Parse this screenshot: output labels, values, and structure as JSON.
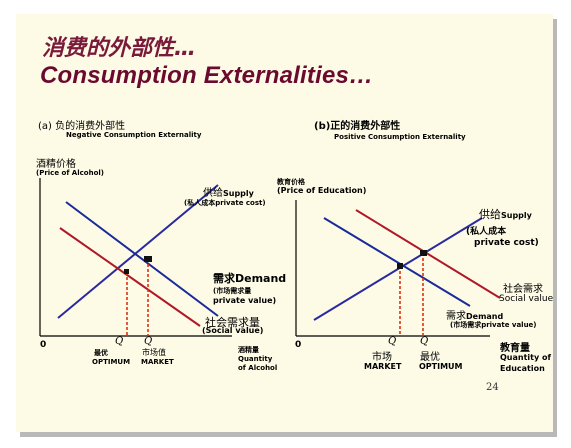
{
  "title_cn": "消费的外部性…",
  "title_en": "Consumption Externalities…",
  "left": {
    "label_cn": "(a)  负的消费外部性",
    "label_en": "Negative Consumption Externality",
    "yaxis_cn": "酒精价格",
    "yaxis_en": "(Price of Alcohol)",
    "supply_cn": "供给",
    "supply_en": "Supply",
    "supply_note": "(私人成本private cost)",
    "demand_cn": "需求",
    "demand_en": "Demand",
    "demand_note1": "(市场需求量",
    "demand_note2": "private value)",
    "social_cn": "社会需求量",
    "social_note": "(Social value)",
    "origin": "0",
    "q1": "Q",
    "q2": "Q",
    "optimum_cn": "最优",
    "optimum_en": "OPTIMUM",
    "market_cn": "市场值",
    "market_en": "MARKET",
    "xaxis_cn": "酒精量",
    "xaxis_en1": "Quantity",
    "xaxis_en2": "of Alcohol"
  },
  "right": {
    "label_cn": "(b)正的消费外部性",
    "label_en": "Positive Consumption Externality",
    "yaxis_cn": "教育价格",
    "yaxis_en": "(Price of Education)",
    "supply_cn": "供给",
    "supply_en": "Supply",
    "supply_note1": "(私人成本",
    "supply_note2": "private cost)",
    "social_cn": "社会需求",
    "social_en": "Social value",
    "demand_cn": "需求",
    "demand_en": "Demand",
    "demand_note": "(市场需求private value)",
    "origin": "0",
    "q1": "Q",
    "q2": "Q",
    "market_cn": "市场",
    "market_en": "MARKET",
    "optimum_cn": "最优",
    "optimum_en": "OPTIMUM",
    "xaxis_cn": "教育量",
    "xaxis_en1": "Quantity of",
    "xaxis_en2": "Education"
  },
  "page_number": "24",
  "colors": {
    "supply": "#2a2aa0",
    "social": "#b0182a",
    "market": "#1a2a9a",
    "drop": "#e03010",
    "title": "#6a0a2e"
  }
}
